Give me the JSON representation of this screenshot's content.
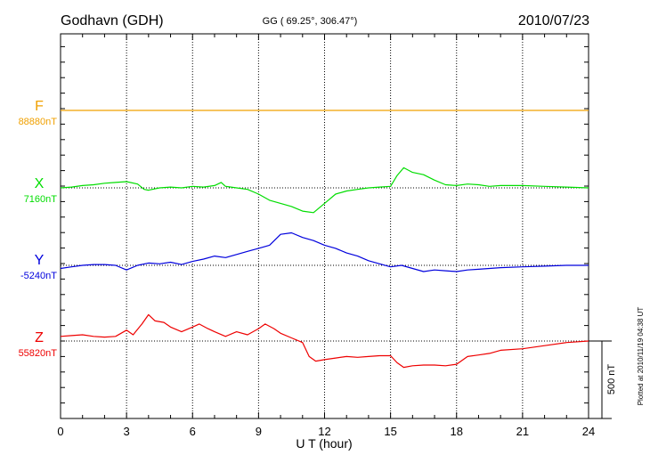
{
  "header": {
    "station": "Godhavn (GDH)",
    "coords": "GG ( 69.25°, 306.47°)",
    "date": "2010/07/23"
  },
  "footer": {
    "plotted": "Plotted at 2010/11/19 04:38 UT"
  },
  "chart_data": {
    "type": "line",
    "xlabel": "U T (hour)",
    "xlim": [
      0,
      24
    ],
    "xticks": [
      "0",
      "3",
      "6",
      "9",
      "12",
      "15",
      "18",
      "21",
      "24"
    ],
    "grid": true,
    "scale_bar": {
      "label": "500 nT",
      "value": 500
    },
    "series": [
      {
        "name": "F",
        "baseline_label": "88880nT",
        "color": "#f0a000",
        "baseline": 88880,
        "x": [
          0,
          3,
          6,
          9,
          12,
          15,
          18,
          21,
          24
        ],
        "values": [
          88880,
          88880,
          88880,
          88880,
          88880,
          88880,
          88880,
          88880,
          88880
        ]
      },
      {
        "name": "X",
        "baseline_label": "7160nT",
        "color": "#00dd00",
        "baseline": 7160,
        "x": [
          0,
          0.5,
          1,
          1.5,
          2,
          2.5,
          3,
          3.5,
          3.8,
          4,
          4.5,
          5,
          5.5,
          6,
          6.5,
          7,
          7.3,
          7.5,
          8,
          8.5,
          9,
          9.5,
          10,
          10.5,
          11,
          11.5,
          12,
          12.5,
          13,
          13.5,
          14,
          14.5,
          15,
          15.3,
          15.6,
          16,
          16.5,
          17,
          17.5,
          18,
          18.5,
          19,
          19.5,
          20,
          21,
          22,
          23,
          24
        ],
        "values": [
          7160,
          7165,
          7175,
          7180,
          7190,
          7195,
          7200,
          7185,
          7150,
          7145,
          7160,
          7165,
          7160,
          7170,
          7165,
          7175,
          7195,
          7170,
          7160,
          7150,
          7120,
          7080,
          7060,
          7040,
          7010,
          7000,
          7060,
          7120,
          7140,
          7150,
          7160,
          7165,
          7170,
          7240,
          7290,
          7260,
          7245,
          7210,
          7180,
          7175,
          7185,
          7180,
          7170,
          7175,
          7175,
          7170,
          7165,
          7160
        ]
      },
      {
        "name": "Y",
        "baseline_label": "-5240nT",
        "color": "#0000dd",
        "baseline": -5240,
        "x": [
          0,
          0.5,
          1,
          1.5,
          2,
          2.5,
          3,
          3.5,
          4,
          4.5,
          5,
          5.5,
          6,
          6.5,
          7,
          7.5,
          8,
          8.5,
          9,
          9.5,
          10,
          10.5,
          11,
          11.5,
          12,
          12.5,
          13,
          13.5,
          14,
          14.5,
          15,
          15.5,
          16,
          16.5,
          17,
          17.5,
          18,
          18.5,
          19,
          19.5,
          20,
          21,
          22,
          23,
          24
        ],
        "values": [
          -5260,
          -5250,
          -5240,
          -5235,
          -5235,
          -5240,
          -5270,
          -5240,
          -5225,
          -5230,
          -5220,
          -5235,
          -5215,
          -5200,
          -5180,
          -5190,
          -5170,
          -5150,
          -5130,
          -5110,
          -5040,
          -5030,
          -5060,
          -5080,
          -5110,
          -5130,
          -5160,
          -5180,
          -5210,
          -5230,
          -5250,
          -5240,
          -5260,
          -5280,
          -5270,
          -5275,
          -5280,
          -5270,
          -5265,
          -5260,
          -5255,
          -5250,
          -5245,
          -5240,
          -5240
        ]
      },
      {
        "name": "Z",
        "baseline_label": "55820nT",
        "color": "#ee0000",
        "baseline": 55820,
        "x": [
          0,
          0.5,
          1,
          1.5,
          2,
          2.5,
          3,
          3.3,
          3.7,
          4,
          4.3,
          4.7,
          5,
          5.5,
          6,
          6.3,
          6.7,
          7,
          7.5,
          8,
          8.5,
          9,
          9.3,
          9.7,
          10,
          10.5,
          11,
          11.3,
          11.6,
          12,
          12.5,
          13,
          13.5,
          14,
          14.5,
          15,
          15.3,
          15.6,
          16,
          16.5,
          17,
          17.5,
          18,
          18.5,
          19,
          19.5,
          20,
          21,
          22,
          23,
          24
        ],
        "values": [
          55850,
          55855,
          55860,
          55850,
          55845,
          55850,
          55890,
          55860,
          55930,
          55990,
          55950,
          55940,
          55910,
          55880,
          55910,
          55930,
          55900,
          55880,
          55850,
          55880,
          55860,
          55900,
          55930,
          55900,
          55870,
          55840,
          55810,
          55720,
          55690,
          55700,
          55710,
          55720,
          55715,
          55720,
          55725,
          55725,
          55680,
          55650,
          55660,
          55665,
          55665,
          55660,
          55670,
          55720,
          55730,
          55740,
          55760,
          55770,
          55790,
          55810,
          55820
        ]
      }
    ]
  }
}
